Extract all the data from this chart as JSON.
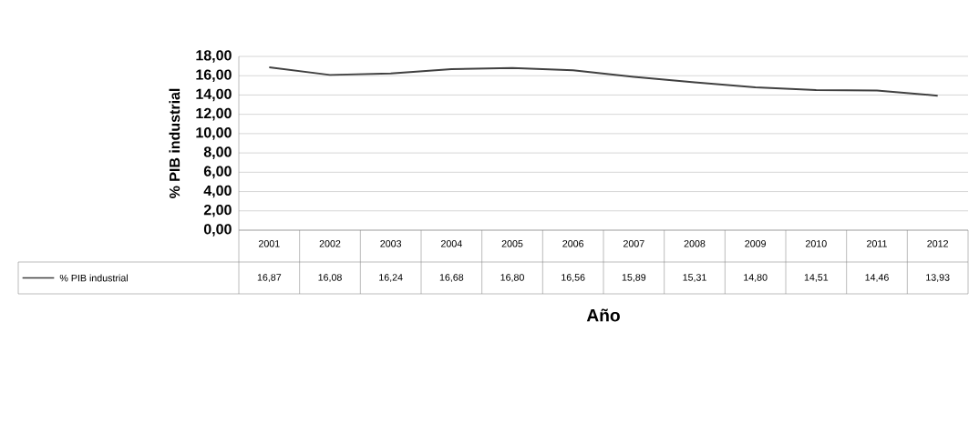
{
  "chart_data": {
    "type": "line",
    "categories": [
      "2001",
      "2002",
      "2003",
      "2004",
      "2005",
      "2006",
      "2007",
      "2008",
      "2009",
      "2010",
      "2011",
      "2012"
    ],
    "series": [
      {
        "name": "% PIB industrial",
        "color": "#404040",
        "values": [
          16.87,
          16.08,
          16.24,
          16.68,
          16.8,
          16.56,
          15.89,
          15.31,
          14.8,
          14.51,
          14.46,
          13.93
        ],
        "value_labels": [
          "16,87",
          "16,08",
          "16,24",
          "16,68",
          "16,80",
          "16,56",
          "15,89",
          "15,31",
          "14,80",
          "14,51",
          "14,46",
          "13,93"
        ]
      }
    ],
    "ylim": [
      0,
      18
    ],
    "yticks": [
      {
        "value": 0,
        "label": "0,00"
      },
      {
        "value": 2,
        "label": "2,00"
      },
      {
        "value": 4,
        "label": "4,00"
      },
      {
        "value": 6,
        "label": "6,00"
      },
      {
        "value": 8,
        "label": "8,00"
      },
      {
        "value": 10,
        "label": "10,00"
      },
      {
        "value": 12,
        "label": "12,00"
      },
      {
        "value": 14,
        "label": "14,00"
      },
      {
        "value": 16,
        "label": "16,00"
      },
      {
        "value": 18,
        "label": "18,00"
      }
    ],
    "xlabel": "Año",
    "ylabel": "% PIB industrial",
    "grid": "y",
    "legend": "bottom left",
    "marker": "none",
    "line_style": "solid"
  }
}
